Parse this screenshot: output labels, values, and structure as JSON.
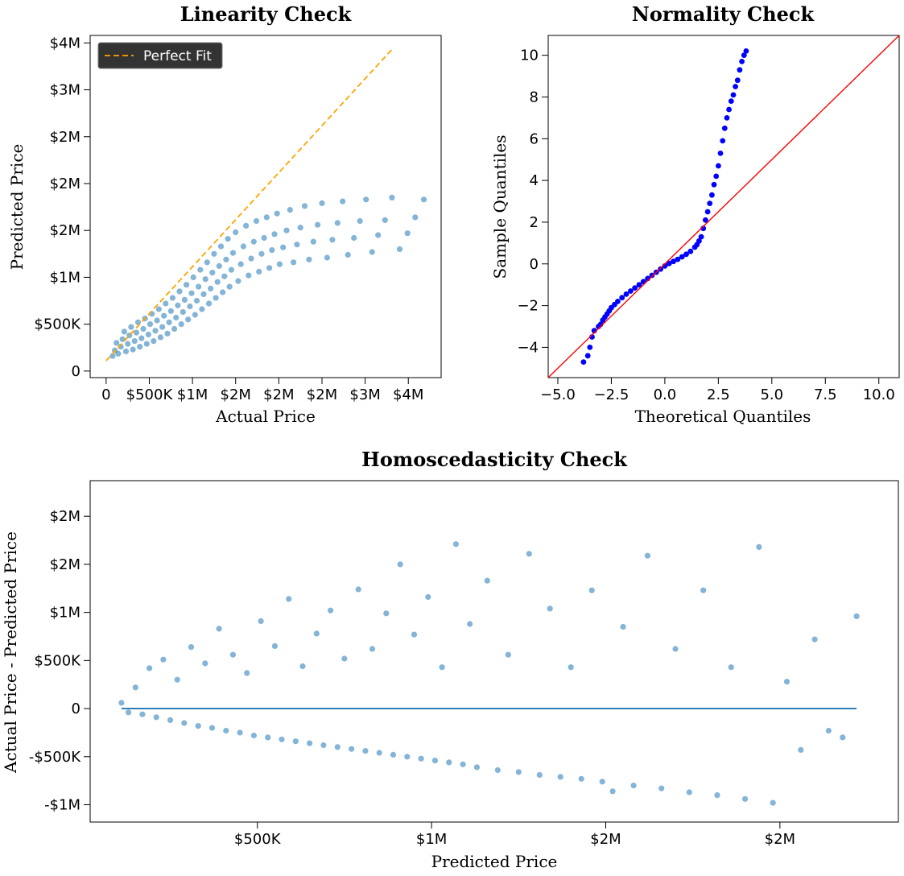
{
  "colors": {
    "scatter": "#1f77b4",
    "perfect_fit": "#ffa500",
    "qq_points": "#0000ff",
    "qq_line": "#ff0000",
    "zero_line": "#1f77b4",
    "legend_bg": "#333333"
  },
  "chart_data": [
    {
      "id": "linearity",
      "type": "scatter",
      "title": "Linearity Check",
      "xlabel": "Actual Price",
      "ylabel": "Predicted Price",
      "xlim": [
        -185000,
        3880000
      ],
      "ylim": [
        -70000,
        3580000
      ],
      "xticks": [
        {
          "value": 0,
          "label": "0"
        },
        {
          "value": 500000,
          "label": "$500K"
        },
        {
          "value": 1000000,
          "label": "$1M"
        },
        {
          "value": 1500000,
          "label": "$2M"
        },
        {
          "value": 2000000,
          "label": "$2M"
        },
        {
          "value": 2500000,
          "label": "$2M"
        },
        {
          "value": 3000000,
          "label": "$3M"
        },
        {
          "value": 3500000,
          "label": "$4M"
        }
      ],
      "yticks": [
        {
          "value": 0,
          "label": "0"
        },
        {
          "value": 500000,
          "label": "$500K"
        },
        {
          "value": 1000000,
          "label": "$1M"
        },
        {
          "value": 1500000,
          "label": "$2M"
        },
        {
          "value": 2000000,
          "label": "$2M"
        },
        {
          "value": 2500000,
          "label": "$2M"
        },
        {
          "value": 3000000,
          "label": "$3M"
        },
        {
          "value": 3500000,
          "label": "$4M"
        }
      ],
      "legend": {
        "label": "Perfect Fit",
        "position": "top-left"
      },
      "reference_line": {
        "x": [
          0,
          3320000
        ],
        "y": [
          110000,
          3440000
        ]
      },
      "approx_points": [
        [
          75000,
          160000
        ],
        [
          100000,
          220000
        ],
        [
          120000,
          300000
        ],
        [
          140000,
          185000
        ],
        [
          170000,
          260000
        ],
        [
          190000,
          340000
        ],
        [
          210000,
          420000
        ],
        [
          230000,
          210000
        ],
        [
          250000,
          290000
        ],
        [
          270000,
          380000
        ],
        [
          290000,
          470000
        ],
        [
          310000,
          230000
        ],
        [
          330000,
          320000
        ],
        [
          350000,
          410000
        ],
        [
          370000,
          520000
        ],
        [
          390000,
          260000
        ],
        [
          410000,
          350000
        ],
        [
          430000,
          450000
        ],
        [
          450000,
          560000
        ],
        [
          470000,
          290000
        ],
        [
          490000,
          390000
        ],
        [
          510000,
          500000
        ],
        [
          530000,
          610000
        ],
        [
          550000,
          320000
        ],
        [
          570000,
          430000
        ],
        [
          590000,
          540000
        ],
        [
          610000,
          660000
        ],
        [
          630000,
          360000
        ],
        [
          650000,
          470000
        ],
        [
          670000,
          590000
        ],
        [
          690000,
          720000
        ],
        [
          710000,
          400000
        ],
        [
          730000,
          520000
        ],
        [
          750000,
          640000
        ],
        [
          770000,
          780000
        ],
        [
          790000,
          450000
        ],
        [
          810000,
          570000
        ],
        [
          830000,
          700000
        ],
        [
          850000,
          850000
        ],
        [
          870000,
          500000
        ],
        [
          890000,
          630000
        ],
        [
          910000,
          760000
        ],
        [
          930000,
          920000
        ],
        [
          950000,
          550000
        ],
        [
          970000,
          690000
        ],
        [
          990000,
          830000
        ],
        [
          1010000,
          1000000
        ],
        [
          1030000,
          600000
        ],
        [
          1050000,
          750000
        ],
        [
          1070000,
          900000
        ],
        [
          1090000,
          1080000
        ],
        [
          1110000,
          660000
        ],
        [
          1130000,
          820000
        ],
        [
          1150000,
          980000
        ],
        [
          1170000,
          1160000
        ],
        [
          1190000,
          720000
        ],
        [
          1210000,
          880000
        ],
        [
          1230000,
          1050000
        ],
        [
          1250000,
          1250000
        ],
        [
          1270000,
          780000
        ],
        [
          1290000,
          950000
        ],
        [
          1310000,
          1120000
        ],
        [
          1330000,
          1330000
        ],
        [
          1350000,
          840000
        ],
        [
          1370000,
          1010000
        ],
        [
          1390000,
          1190000
        ],
        [
          1410000,
          1410000
        ],
        [
          1430000,
          900000
        ],
        [
          1450000,
          1080000
        ],
        [
          1470000,
          1260000
        ],
        [
          1500000,
          1480000
        ],
        [
          1530000,
          960000
        ],
        [
          1560000,
          1140000
        ],
        [
          1590000,
          1330000
        ],
        [
          1620000,
          1550000
        ],
        [
          1650000,
          1020000
        ],
        [
          1680000,
          1200000
        ],
        [
          1710000,
          1380000
        ],
        [
          1740000,
          1600000
        ],
        [
          1770000,
          1060000
        ],
        [
          1800000,
          1250000
        ],
        [
          1830000,
          1420000
        ],
        [
          1860000,
          1640000
        ],
        [
          1890000,
          1100000
        ],
        [
          1920000,
          1290000
        ],
        [
          1950000,
          1460000
        ],
        [
          1980000,
          1680000
        ],
        [
          2010000,
          1140000
        ],
        [
          2050000,
          1320000
        ],
        [
          2090000,
          1500000
        ],
        [
          2130000,
          1720000
        ],
        [
          2170000,
          1160000
        ],
        [
          2210000,
          1350000
        ],
        [
          2250000,
          1530000
        ],
        [
          2300000,
          1760000
        ],
        [
          2350000,
          1190000
        ],
        [
          2400000,
          1380000
        ],
        [
          2450000,
          1560000
        ],
        [
          2500000,
          1790000
        ],
        [
          2560000,
          1210000
        ],
        [
          2620000,
          1400000
        ],
        [
          2680000,
          1580000
        ],
        [
          2740000,
          1810000
        ],
        [
          2800000,
          1240000
        ],
        [
          2870000,
          1420000
        ],
        [
          2940000,
          1600000
        ],
        [
          3010000,
          1830000
        ],
        [
          3080000,
          1270000
        ],
        [
          3150000,
          1450000
        ],
        [
          3230000,
          1610000
        ],
        [
          3310000,
          1850000
        ],
        [
          3400000,
          1300000
        ],
        [
          3490000,
          1470000
        ],
        [
          3580000,
          1640000
        ],
        [
          3680000,
          1830000
        ]
      ]
    },
    {
      "id": "normality",
      "type": "scatter",
      "title": "Normality Check",
      "xlabel": "Theoretical Quantiles",
      "ylabel": "Sample Quantiles",
      "xlim": [
        -5.45,
        10.95
      ],
      "ylim": [
        -5.45,
        10.95
      ],
      "xticks": [
        {
          "value": -5,
          "label": "−5.0"
        },
        {
          "value": -2.5,
          "label": "−2.5"
        },
        {
          "value": 0,
          "label": "0.0"
        },
        {
          "value": 2.5,
          "label": "2.5"
        },
        {
          "value": 5,
          "label": "5.0"
        },
        {
          "value": 7.5,
          "label": "7.5"
        },
        {
          "value": 10,
          "label": "10.0"
        }
      ],
      "yticks": [
        {
          "value": -4,
          "label": "−4"
        },
        {
          "value": -2,
          "label": "−2"
        },
        {
          "value": 0,
          "label": "0"
        },
        {
          "value": 2,
          "label": "2"
        },
        {
          "value": 4,
          "label": "4"
        },
        {
          "value": 6,
          "label": "6"
        },
        {
          "value": 8,
          "label": "8"
        },
        {
          "value": 10,
          "label": "10"
        }
      ],
      "reference_line": {
        "x": [
          -5.45,
          10.95
        ],
        "y": [
          -5.45,
          10.95
        ]
      },
      "approx_points": [
        [
          -3.8,
          -4.7
        ],
        [
          -3.6,
          -4.4
        ],
        [
          -3.5,
          -4.0
        ],
        [
          -3.4,
          -3.5
        ],
        [
          -3.3,
          -3.2
        ],
        [
          -3.1,
          -3.0
        ],
        [
          -3.0,
          -2.9
        ],
        [
          -2.9,
          -2.7
        ],
        [
          -2.8,
          -2.55
        ],
        [
          -2.7,
          -2.4
        ],
        [
          -2.6,
          -2.25
        ],
        [
          -2.5,
          -2.1
        ],
        [
          -2.35,
          -1.95
        ],
        [
          -2.2,
          -1.8
        ],
        [
          -2.0,
          -1.62
        ],
        [
          -1.8,
          -1.45
        ],
        [
          -1.6,
          -1.3
        ],
        [
          -1.4,
          -1.15
        ],
        [
          -1.2,
          -1.0
        ],
        [
          -1.0,
          -0.85
        ],
        [
          -0.8,
          -0.7
        ],
        [
          -0.6,
          -0.55
        ],
        [
          -0.4,
          -0.4
        ],
        [
          -0.2,
          -0.25
        ],
        [
          0.0,
          -0.1
        ],
        [
          0.2,
          0.02
        ],
        [
          0.4,
          0.12
        ],
        [
          0.6,
          0.22
        ],
        [
          0.8,
          0.34
        ],
        [
          1.0,
          0.46
        ],
        [
          1.2,
          0.6
        ],
        [
          1.4,
          0.8
        ],
        [
          1.5,
          0.92
        ],
        [
          1.6,
          1.1
        ],
        [
          1.7,
          1.3
        ],
        [
          1.8,
          1.7
        ],
        [
          1.9,
          2.1
        ],
        [
          2.0,
          2.5
        ],
        [
          2.1,
          2.9
        ],
        [
          2.2,
          3.3
        ],
        [
          2.3,
          3.8
        ],
        [
          2.4,
          4.2
        ],
        [
          2.5,
          4.7
        ],
        [
          2.6,
          5.3
        ],
        [
          2.7,
          5.9
        ],
        [
          2.8,
          6.5
        ],
        [
          2.9,
          7.0
        ],
        [
          3.0,
          7.4
        ],
        [
          3.1,
          7.8
        ],
        [
          3.2,
          8.1
        ],
        [
          3.3,
          8.5
        ],
        [
          3.4,
          8.8
        ],
        [
          3.5,
          9.3
        ],
        [
          3.6,
          9.7
        ],
        [
          3.7,
          10.0
        ],
        [
          3.8,
          10.2
        ]
      ]
    },
    {
      "id": "homoscedasticity",
      "type": "scatter",
      "title": "Homoscedasticity Check",
      "xlabel": "Predicted Price",
      "ylabel": "Actual Price - Predicted Price",
      "xlim": [
        20000,
        2340000
      ],
      "ylim": [
        -1180000,
        2370000
      ],
      "xticks": [
        {
          "value": 500000,
          "label": "$500K"
        },
        {
          "value": 1000000,
          "label": "$1M"
        },
        {
          "value": 1500000,
          "label": "$2M"
        },
        {
          "value": 2000000,
          "label": "$2M"
        }
      ],
      "yticks": [
        {
          "value": -1000000,
          "label": "-$1M"
        },
        {
          "value": -500000,
          "label": "-$500K"
        },
        {
          "value": 0,
          "label": "0"
        },
        {
          "value": 500000,
          "label": "$500K"
        },
        {
          "value": 1000000,
          "label": "$1M"
        },
        {
          "value": 1500000,
          "label": "$2M"
        },
        {
          "value": 2000000,
          "label": "$2M"
        }
      ],
      "reference_line": {
        "x": [
          110000,
          2220000
        ],
        "y": [
          0,
          0
        ]
      },
      "approx_points": [
        [
          110000,
          60000
        ],
        [
          130000,
          -40000
        ],
        [
          150000,
          220000
        ],
        [
          170000,
          -60000
        ],
        [
          190000,
          420000
        ],
        [
          210000,
          -90000
        ],
        [
          230000,
          510000
        ],
        [
          250000,
          -120000
        ],
        [
          270000,
          300000
        ],
        [
          290000,
          -150000
        ],
        [
          310000,
          640000
        ],
        [
          330000,
          -180000
        ],
        [
          350000,
          470000
        ],
        [
          370000,
          -200000
        ],
        [
          390000,
          830000
        ],
        [
          410000,
          -230000
        ],
        [
          430000,
          560000
        ],
        [
          450000,
          -250000
        ],
        [
          470000,
          370000
        ],
        [
          490000,
          -280000
        ],
        [
          510000,
          910000
        ],
        [
          530000,
          -300000
        ],
        [
          550000,
          650000
        ],
        [
          570000,
          -320000
        ],
        [
          590000,
          1140000
        ],
        [
          610000,
          -340000
        ],
        [
          630000,
          440000
        ],
        [
          650000,
          -360000
        ],
        [
          670000,
          780000
        ],
        [
          690000,
          -380000
        ],
        [
          710000,
          1020000
        ],
        [
          730000,
          -400000
        ],
        [
          750000,
          520000
        ],
        [
          770000,
          -420000
        ],
        [
          790000,
          1240000
        ],
        [
          810000,
          -440000
        ],
        [
          830000,
          620000
        ],
        [
          850000,
          -460000
        ],
        [
          870000,
          990000
        ],
        [
          890000,
          -480000
        ],
        [
          910000,
          1500000
        ],
        [
          930000,
          -500000
        ],
        [
          950000,
          770000
        ],
        [
          970000,
          -520000
        ],
        [
          990000,
          1160000
        ],
        [
          1010000,
          -540000
        ],
        [
          1030000,
          430000
        ],
        [
          1050000,
          -560000
        ],
        [
          1070000,
          1710000
        ],
        [
          1090000,
          -580000
        ],
        [
          1110000,
          880000
        ],
        [
          1130000,
          -610000
        ],
        [
          1160000,
          1330000
        ],
        [
          1190000,
          -640000
        ],
        [
          1220000,
          560000
        ],
        [
          1250000,
          -660000
        ],
        [
          1280000,
          1610000
        ],
        [
          1310000,
          -690000
        ],
        [
          1340000,
          1040000
        ],
        [
          1370000,
          -710000
        ],
        [
          1400000,
          430000
        ],
        [
          1430000,
          -730000
        ],
        [
          1460000,
          1230000
        ],
        [
          1490000,
          -760000
        ],
        [
          1520000,
          -860000
        ],
        [
          1550000,
          850000
        ],
        [
          1580000,
          -800000
        ],
        [
          1620000,
          1590000
        ],
        [
          1660000,
          -830000
        ],
        [
          1700000,
          620000
        ],
        [
          1740000,
          -870000
        ],
        [
          1780000,
          1230000
        ],
        [
          1820000,
          -900000
        ],
        [
          1860000,
          430000
        ],
        [
          1900000,
          -940000
        ],
        [
          1940000,
          1680000
        ],
        [
          1980000,
          -980000
        ],
        [
          2020000,
          280000
        ],
        [
          2060000,
          -430000
        ],
        [
          2100000,
          720000
        ],
        [
          2140000,
          -230000
        ],
        [
          2180000,
          -300000
        ],
        [
          2220000,
          960000
        ]
      ]
    }
  ]
}
